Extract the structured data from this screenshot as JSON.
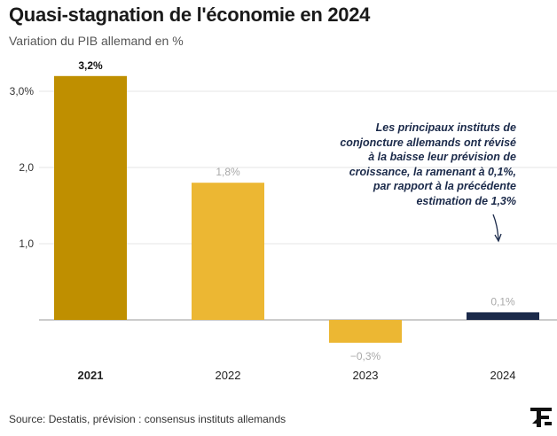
{
  "title": "Quasi-stagnation de l'économie en 2024",
  "subtitle": "Variation du PIB allemand en %",
  "annotation": "Les principaux instituts de conjoncture allemands ont révisé à la baisse leur prévision de croissance, la ramenant à 0,1%, par rapport à la précédente estimation de 1,3%",
  "source": "Source: Destatis, prévision : consensus instituts allemands",
  "logo": {
    "icon": "le-figaro-logo"
  },
  "colors": {
    "bar_2021": "#bf8f00",
    "bar_default": "#ecb733",
    "bar_forecast": "#1b2a4a",
    "label_muted": "#a9a9a9",
    "grid": "#e6e6e6",
    "axis": "#9a9a9a"
  },
  "chart_data": {
    "type": "bar",
    "categories": [
      "2021",
      "2022",
      "2023",
      "2024"
    ],
    "values": [
      3.2,
      1.8,
      -0.3,
      0.1
    ],
    "value_labels": [
      "3,2%",
      "1,8%",
      "−0,3%",
      "0,1%"
    ],
    "highlight": [
      "2021"
    ],
    "forecast": [
      "2024"
    ],
    "y_ticks": [
      {
        "value": 3,
        "label": "3,0%"
      },
      {
        "value": 2,
        "label": "2,0"
      },
      {
        "value": 1,
        "label": "1,0"
      }
    ],
    "ylim": [
      -0.45,
      3.35
    ],
    "grid": true
  }
}
